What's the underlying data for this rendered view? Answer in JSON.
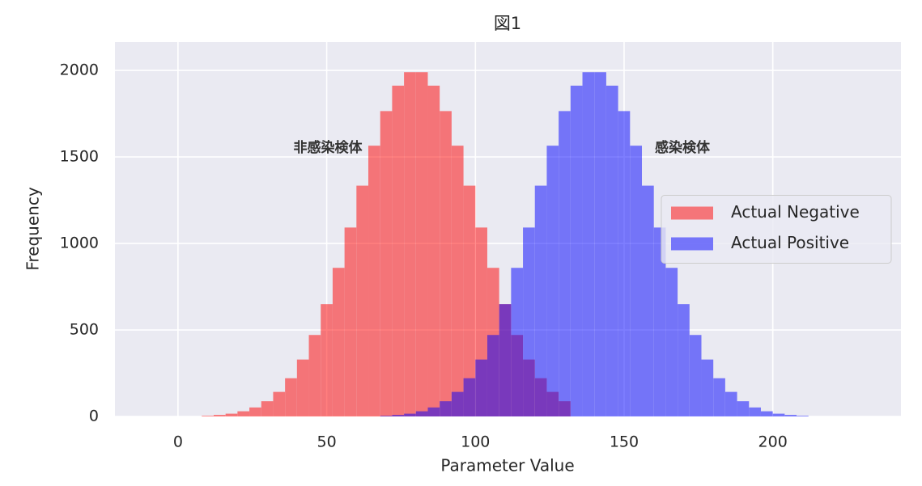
{
  "chart_data": {
    "type": "histogram",
    "title": "図1",
    "xlabel": "Parameter Value",
    "ylabel": "Frequency",
    "xlim": [
      -21.2,
      243.1
    ],
    "ylim": [
      0,
      2164
    ],
    "xticks": [
      0,
      50,
      100,
      150,
      200
    ],
    "yticks": [
      0,
      500,
      1000,
      1500,
      2000
    ],
    "grid": true,
    "legend": "center right",
    "alpha": 0.5,
    "series": [
      {
        "name": "Actual Negative",
        "color": "red",
        "bins": [
          8,
          12,
          16,
          20,
          24,
          28,
          32,
          36,
          40,
          44,
          48,
          52,
          56,
          60,
          64,
          68,
          72,
          76,
          80,
          84,
          88,
          92,
          96,
          100,
          104,
          108,
          112,
          116,
          120,
          124,
          128,
          132
        ],
        "values": [
          4,
          9,
          16,
          30,
          52,
          88,
          142,
          221,
          329,
          471,
          649,
          859,
          1092,
          1334,
          1565,
          1765,
          1912,
          1990,
          1990,
          1912,
          1765,
          1565,
          1334,
          1092,
          859,
          649,
          471,
          329,
          221,
          142,
          88
        ]
      },
      {
        "name": "Actual Positive",
        "color": "blue",
        "bins": [
          68,
          72,
          76,
          80,
          84,
          88,
          92,
          96,
          100,
          104,
          108,
          112,
          116,
          120,
          124,
          128,
          132,
          136,
          140,
          144,
          148,
          152,
          156,
          160,
          164,
          168,
          172,
          176,
          180,
          184,
          188,
          192,
          196,
          200,
          204,
          208,
          212
        ],
        "values": [
          4,
          9,
          16,
          30,
          52,
          88,
          142,
          221,
          329,
          471,
          649,
          859,
          1092,
          1334,
          1565,
          1765,
          1912,
          1990,
          1990,
          1912,
          1765,
          1565,
          1334,
          1092,
          859,
          649,
          471,
          329,
          221,
          142,
          88,
          52,
          30,
          16,
          9,
          4
        ]
      }
    ],
    "annotations": [
      {
        "text": "非感染検体",
        "x": 50.4,
        "y": 1551
      },
      {
        "text": "感染検体",
        "x": 169.6,
        "y": 1551
      }
    ]
  }
}
